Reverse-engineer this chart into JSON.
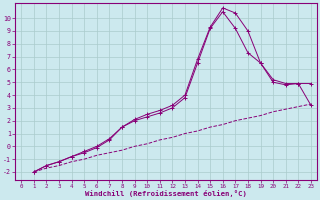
{
  "xlabel": "Windchill (Refroidissement éolien,°C)",
  "xlim": [
    -0.5,
    23.5
  ],
  "ylim": [
    -2.6,
    11.2
  ],
  "xticks": [
    0,
    1,
    2,
    3,
    4,
    5,
    6,
    7,
    8,
    9,
    10,
    11,
    12,
    13,
    14,
    15,
    16,
    17,
    18,
    19,
    20,
    21,
    22,
    23
  ],
  "yticks": [
    -2,
    -1,
    0,
    1,
    2,
    3,
    4,
    5,
    6,
    7,
    8,
    9,
    10
  ],
  "bg_color": "#cce9ee",
  "grid_color": "#aacccc",
  "line_color": "#880077",
  "line1_x": [
    1,
    2,
    3,
    4,
    5,
    6,
    7,
    8,
    9,
    10,
    11,
    12,
    13,
    14,
    15,
    16,
    17,
    18,
    19,
    20,
    21,
    22,
    23
  ],
  "line1_y": [
    -2.0,
    -1.7,
    -1.5,
    -1.2,
    -1.0,
    -0.7,
    -0.5,
    -0.3,
    0.0,
    0.2,
    0.5,
    0.7,
    1.0,
    1.2,
    1.5,
    1.7,
    2.0,
    2.2,
    2.4,
    2.7,
    2.9,
    3.1,
    3.3
  ],
  "line2_x": [
    1,
    2,
    3,
    4,
    5,
    6,
    7,
    8,
    9,
    10,
    11,
    12,
    13,
    14,
    15,
    16,
    17,
    18,
    19,
    20,
    21,
    22,
    23
  ],
  "line2_y": [
    -2.0,
    -1.5,
    -1.2,
    -0.8,
    -0.5,
    -0.1,
    0.5,
    1.5,
    2.0,
    2.3,
    2.6,
    3.0,
    3.8,
    6.5,
    9.2,
    10.5,
    9.2,
    7.3,
    6.5,
    5.0,
    4.8,
    4.9,
    4.9
  ],
  "line3_x": [
    1,
    2,
    3,
    4,
    5,
    6,
    7,
    8,
    9,
    10,
    11,
    12,
    13,
    14,
    15,
    16,
    17,
    18,
    19,
    20,
    21,
    22,
    23
  ],
  "line3_y": [
    -2.0,
    -1.5,
    -1.2,
    -0.8,
    -0.4,
    0.0,
    0.6,
    1.5,
    2.1,
    2.5,
    2.8,
    3.2,
    4.0,
    6.8,
    9.3,
    10.8,
    10.4,
    9.0,
    6.5,
    5.2,
    4.9,
    4.9,
    3.2
  ]
}
